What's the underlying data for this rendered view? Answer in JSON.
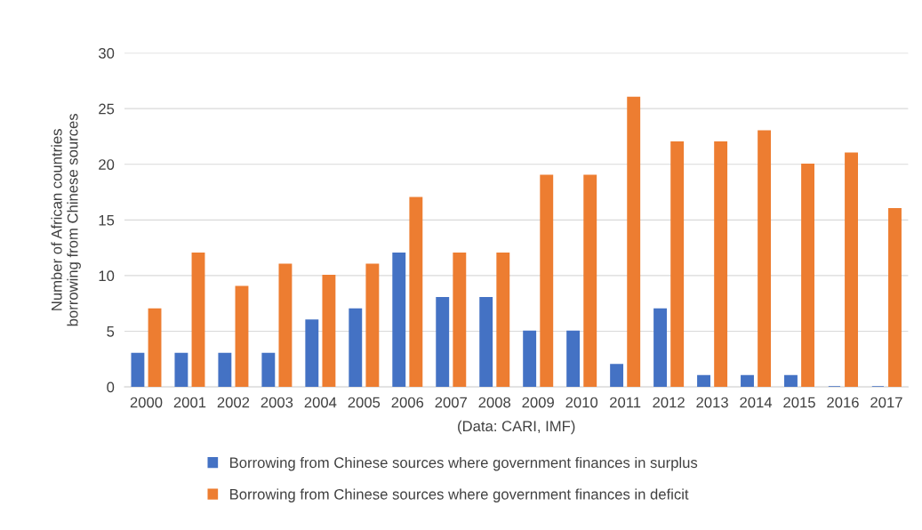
{
  "chart_data": {
    "type": "bar",
    "xlabel": "(Data: CARI, IMF)",
    "ylabel": "Number of African countries\nborrowing from Chinese sources",
    "categories": [
      "2000",
      "2001",
      "2002",
      "2003",
      "2004",
      "2005",
      "2006",
      "2007",
      "2008",
      "2009",
      "2010",
      "2011",
      "2012",
      "2013",
      "2014",
      "2015",
      "2016",
      "2017"
    ],
    "series": [
      {
        "name": "Borrowing from Chinese sources where government finances in surplus",
        "color": "#4472c4",
        "values": [
          3,
          3,
          3,
          3,
          6,
          7,
          12,
          8,
          8,
          5,
          5,
          2,
          7,
          1,
          1,
          1,
          0,
          0
        ]
      },
      {
        "name": "Borrowing from Chinese sources where government finances in deficit",
        "color": "#ed7d31",
        "values": [
          7,
          12,
          9,
          11,
          10,
          11,
          17,
          12,
          12,
          19,
          19,
          26,
          22,
          22,
          23,
          20,
          21,
          16
        ]
      }
    ],
    "ylim": [
      0,
      30
    ],
    "yticks": [
      0,
      5,
      10,
      15,
      20,
      25,
      30
    ],
    "grid": "y",
    "legend": "bottom"
  }
}
